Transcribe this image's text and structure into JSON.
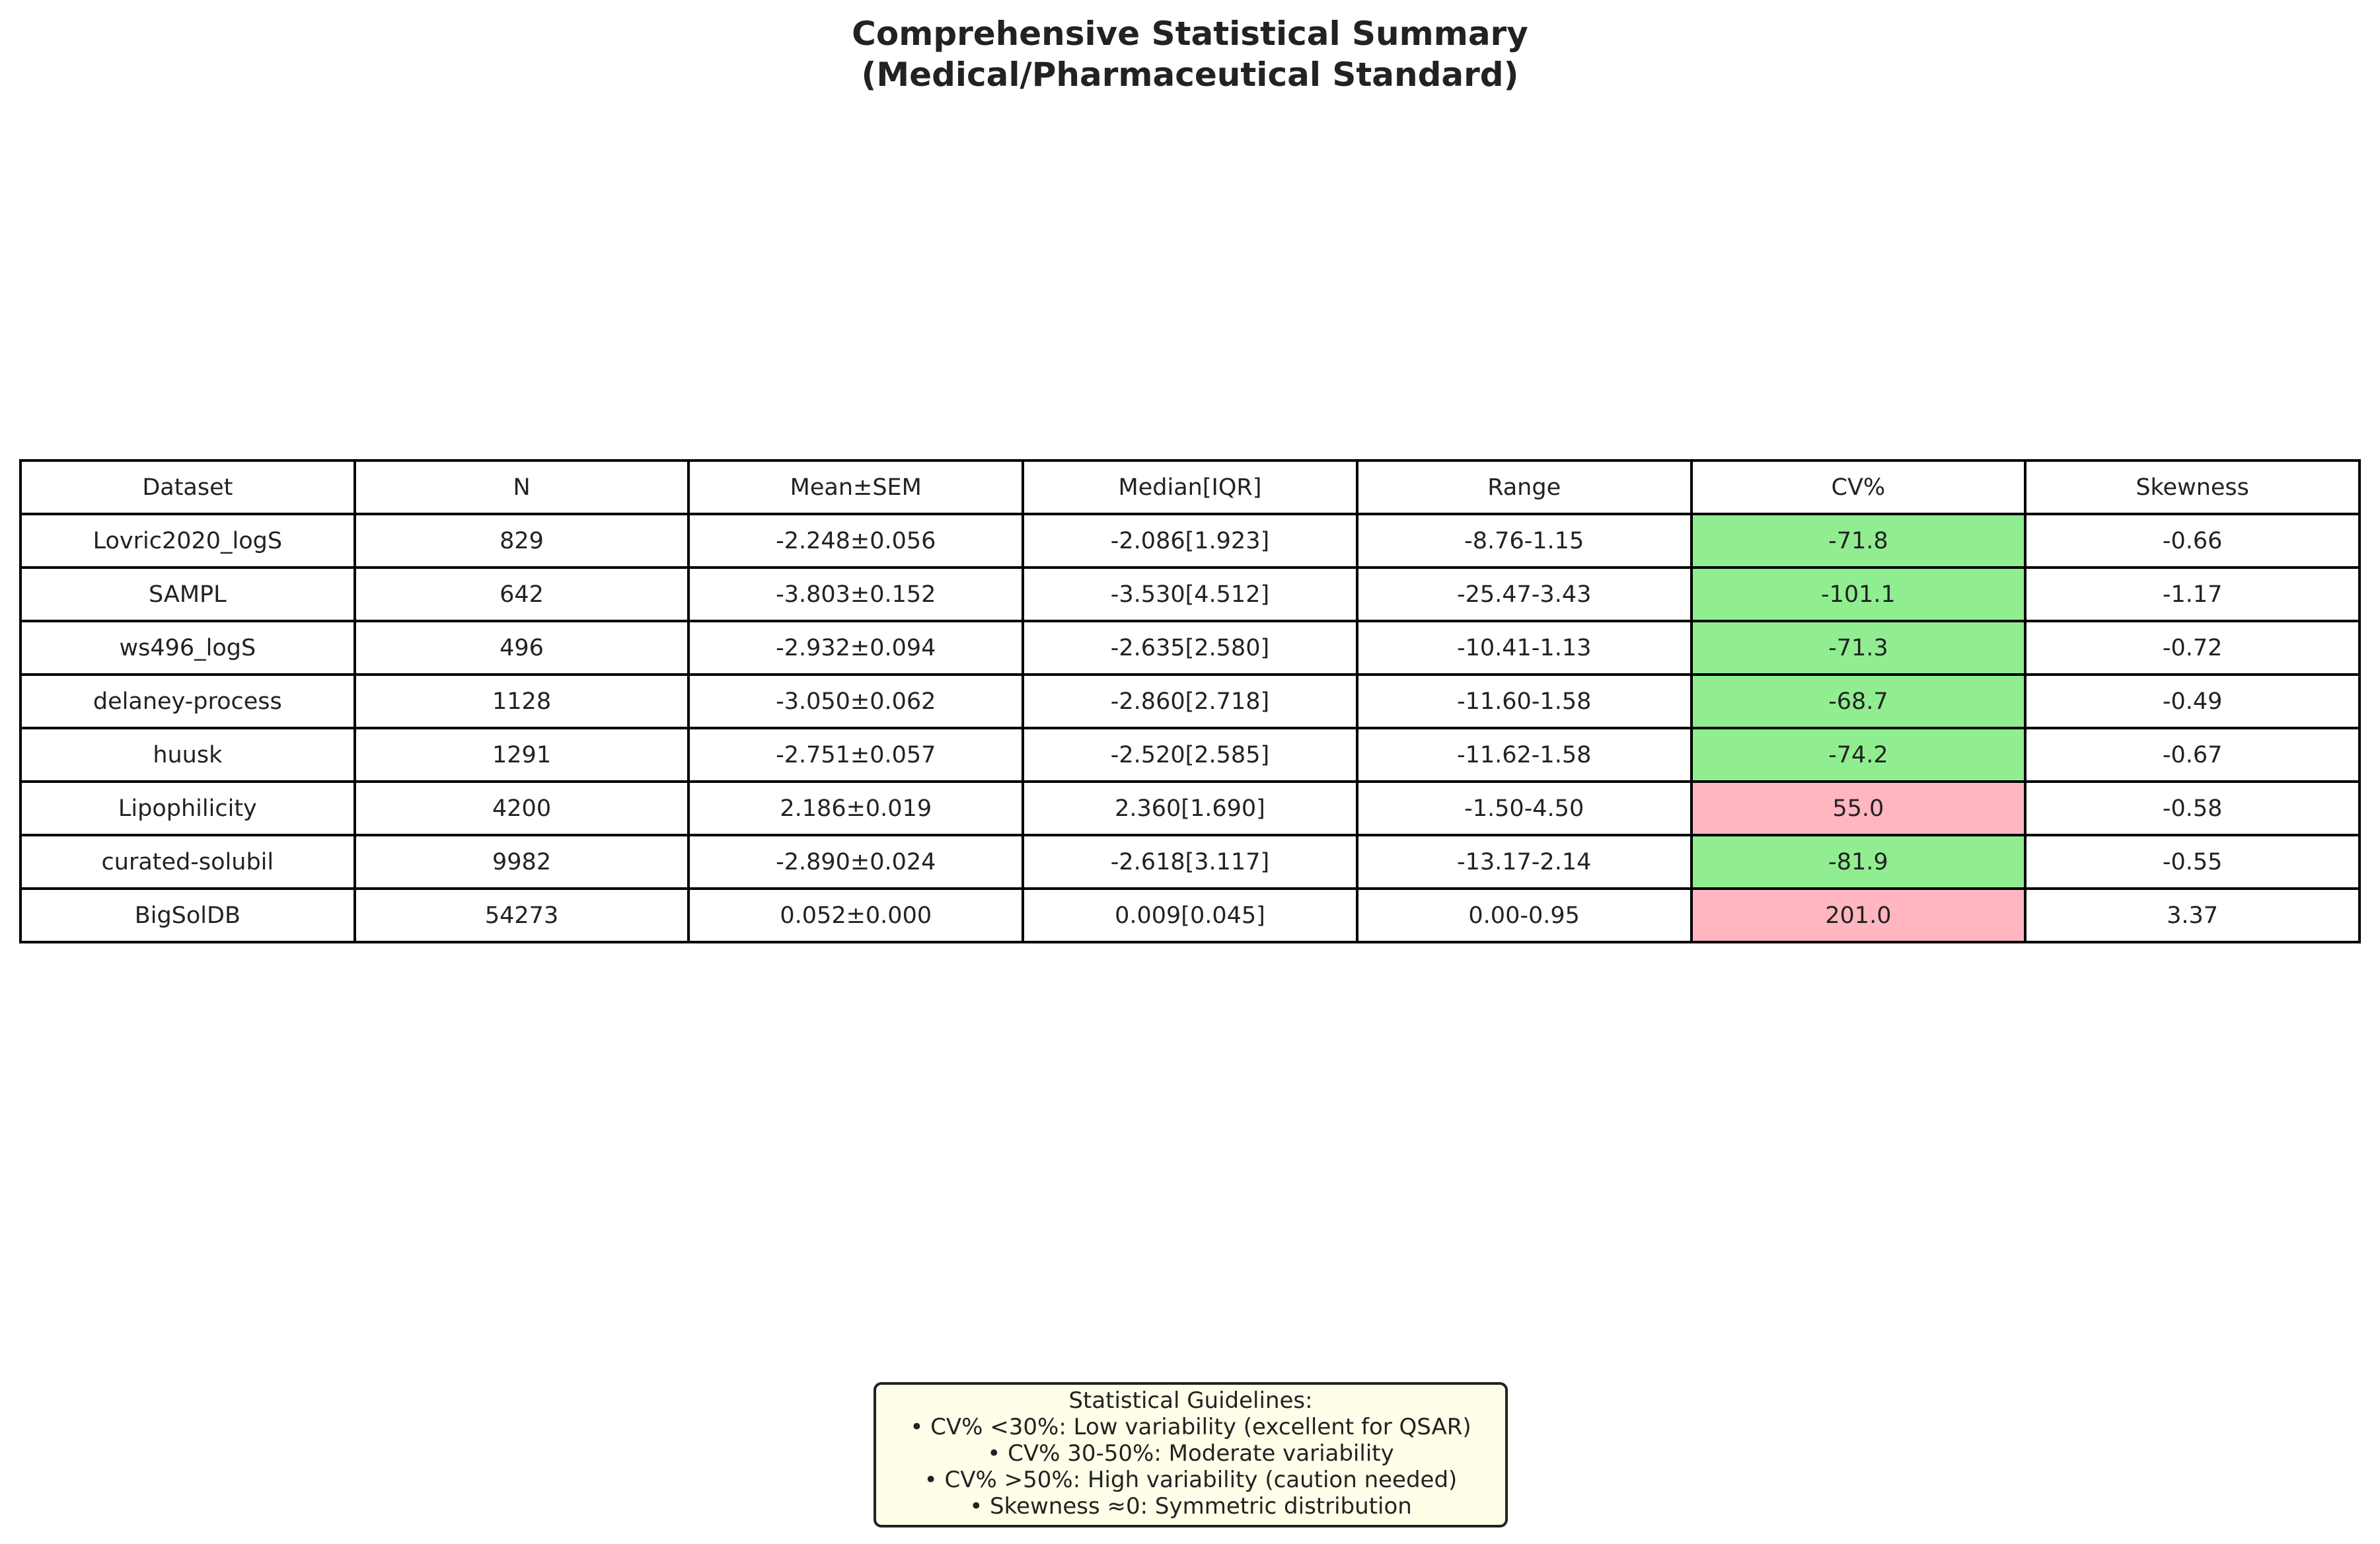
{
  "chart_data": {
    "type": "table",
    "title": "Comprehensive Statistical Summary",
    "subtitle": "(Medical/Pharmaceutical Standard)",
    "columns": [
      "Dataset",
      "N",
      "Mean±SEM",
      "Median[IQR]",
      "Range",
      "CV%",
      "Skewness"
    ],
    "rows": [
      [
        "Lovric2020_logS",
        "829",
        "-2.248±0.056",
        "-2.086[1.923]",
        "-8.76-1.15",
        "-71.8",
        "-0.66"
      ],
      [
        "SAMPL",
        "642",
        "-3.803±0.152",
        "-3.530[4.512]",
        "-25.47-3.43",
        "-101.1",
        "-1.17"
      ],
      [
        "ws496_logS",
        "496",
        "-2.932±0.094",
        "-2.635[2.580]",
        "-10.41-1.13",
        "-71.3",
        "-0.72"
      ],
      [
        "delaney-process",
        "1128",
        "-3.050±0.062",
        "-2.860[2.718]",
        "-11.60-1.58",
        "-68.7",
        "-0.49"
      ],
      [
        "huusk",
        "1291",
        "-2.751±0.057",
        "-2.520[2.585]",
        "-11.62-1.58",
        "-74.2",
        "-0.67"
      ],
      [
        "Lipophilicity",
        "4200",
        "2.186±0.019",
        "2.360[1.690]",
        "-1.50-4.50",
        "55.0",
        "-0.58"
      ],
      [
        "curated-solubil",
        "9982",
        "-2.890±0.024",
        "-2.618[3.117]",
        "-13.17-2.14",
        "-81.9",
        "-0.55"
      ],
      [
        "BigSolDB",
        "54273",
        "0.052±0.000",
        "0.009[0.045]",
        "0.00-0.95",
        "201.0",
        "3.37"
      ]
    ],
    "highlight_column": "CV%",
    "highlight_colors": {
      "low": "#90ee90",
      "high": "#ffb6c1"
    },
    "highlight": [
      "low",
      "low",
      "low",
      "low",
      "low",
      "high",
      "low",
      "high"
    ]
  },
  "guidelines": {
    "title": "Statistical Guidelines:",
    "lines": [
      "• CV% <30%: Low variability (excellent for QSAR)",
      "• CV% 30-50%: Moderate variability",
      "• CV% >50%: High variability (caution needed)",
      "• Skewness ≈0: Symmetric distribution"
    ],
    "background": "#fffee8"
  }
}
